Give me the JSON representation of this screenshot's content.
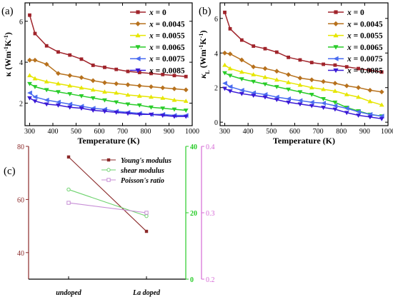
{
  "panel_labels": [
    "(a)",
    "(b)",
    "(c)"
  ],
  "series_names": [
    "x = 0",
    "x = 0.0045",
    "x = 0.0055",
    "x = 0.0065",
    "x = 0.0075",
    "x = 0.0085"
  ],
  "series_colors": [
    "#a0242b",
    "#b7711d",
    "#e6e600",
    "#29cc29",
    "#4a6cf0",
    "#3a1ad6"
  ],
  "chart_data": [
    {
      "type": "line",
      "panel": "(a)",
      "xlabel": "Temperature (K)",
      "ylabel": "κ (Wm⁻¹K⁻¹)",
      "xlim": [
        280,
        1000
      ],
      "xticks": [
        300,
        400,
        500,
        600,
        700,
        800,
        900,
        1000
      ],
      "ylim": [
        0.9,
        6.9
      ],
      "yticks": [
        2,
        4,
        6
      ],
      "grid": false,
      "legend": "top-right",
      "x": [
        300,
        323,
        373,
        423,
        473,
        523,
        573,
        623,
        673,
        723,
        773,
        823,
        873,
        923,
        973
      ],
      "series": [
        {
          "name": "x = 0",
          "values": [
            6.3,
            5.4,
            4.8,
            4.5,
            4.35,
            4.15,
            3.85,
            3.75,
            3.65,
            3.55,
            3.5,
            3.45,
            3.4,
            3.35,
            3.3
          ]
        },
        {
          "name": "x = 0.0045",
          "values": [
            4.1,
            4.1,
            3.9,
            3.45,
            3.35,
            3.25,
            3.1,
            3.0,
            2.95,
            2.9,
            2.85,
            2.8,
            2.75,
            2.7,
            2.65
          ]
        },
        {
          "name": "x = 0.0055",
          "values": [
            3.35,
            3.2,
            3.05,
            2.95,
            2.85,
            2.75,
            2.65,
            2.55,
            2.5,
            2.4,
            2.35,
            2.3,
            2.25,
            2.15,
            2.1
          ]
        },
        {
          "name": "x = 0.0065",
          "values": [
            2.95,
            2.8,
            2.65,
            2.55,
            2.45,
            2.35,
            2.25,
            2.15,
            2.05,
            1.95,
            1.9,
            1.8,
            1.75,
            1.7,
            1.65
          ]
        },
        {
          "name": "x = 0.0075",
          "values": [
            2.5,
            2.3,
            2.15,
            2.05,
            1.95,
            1.85,
            1.75,
            1.7,
            1.6,
            1.55,
            1.5,
            1.45,
            1.45,
            1.4,
            1.4
          ]
        },
        {
          "name": "x = 0.0085",
          "values": [
            2.25,
            2.1,
            1.95,
            1.9,
            1.8,
            1.75,
            1.65,
            1.6,
            1.55,
            1.5,
            1.45,
            1.45,
            1.4,
            1.35,
            1.35
          ]
        }
      ]
    },
    {
      "type": "line",
      "panel": "(b)",
      "xlabel": "Temperature (K)",
      "ylabel": "κL (Wm⁻¹K⁻¹)",
      "xlim": [
        280,
        1000
      ],
      "xticks": [
        300,
        400,
        500,
        600,
        700,
        800,
        900,
        1000
      ],
      "ylim": [
        -0.2,
        6.9
      ],
      "yticks": [
        0,
        2,
        4,
        6
      ],
      "grid": false,
      "legend": "top-right",
      "x": [
        300,
        323,
        373,
        423,
        473,
        523,
        573,
        623,
        673,
        723,
        773,
        823,
        873,
        923,
        973
      ],
      "series": [
        {
          "name": "x = 0",
          "values": [
            6.35,
            5.4,
            4.75,
            4.4,
            4.25,
            4.05,
            3.75,
            3.6,
            3.45,
            3.35,
            3.3,
            3.2,
            3.1,
            3.0,
            2.9
          ]
        },
        {
          "name": "x = 0.0045",
          "values": [
            4.0,
            3.95,
            3.6,
            3.2,
            3.1,
            2.95,
            2.75,
            2.55,
            2.45,
            2.35,
            2.25,
            2.1,
            2.0,
            1.85,
            1.75
          ]
        },
        {
          "name": "x = 0.0055",
          "values": [
            3.3,
            3.1,
            2.9,
            2.75,
            2.6,
            2.45,
            2.3,
            2.15,
            2.0,
            1.9,
            1.8,
            1.6,
            1.45,
            1.2,
            1.0
          ]
        },
        {
          "name": "x = 0.0065",
          "values": [
            2.85,
            2.7,
            2.5,
            2.35,
            2.2,
            2.05,
            1.9,
            1.75,
            1.6,
            1.35,
            1.15,
            0.85,
            0.65,
            0.45,
            0.35
          ]
        },
        {
          "name": "x = 0.0075",
          "values": [
            2.25,
            2.05,
            1.85,
            1.7,
            1.6,
            1.45,
            1.35,
            1.25,
            1.15,
            1.1,
            0.95,
            0.8,
            0.6,
            0.45,
            0.35
          ]
        },
        {
          "name": "x = 0.0085",
          "values": [
            1.95,
            1.8,
            1.65,
            1.55,
            1.45,
            1.3,
            1.15,
            1.05,
            0.95,
            0.85,
            0.75,
            0.55,
            0.4,
            0.3,
            0.2
          ]
        }
      ]
    },
    {
      "type": "line",
      "panel": "(c)",
      "categories": [
        "undoped",
        "La doped"
      ],
      "axes": [
        {
          "side": "left",
          "color": "#8b2a2a",
          "ylim": [
            30,
            80
          ],
          "yticks": [
            40,
            60,
            80
          ]
        },
        {
          "side": "right1",
          "color": "#29cc29",
          "ylim": [
            0,
            40
          ],
          "yticks": [
            0,
            20,
            40
          ]
        },
        {
          "side": "right2",
          "color": "#d66ad6",
          "ylim": [
            0.2,
            0.4
          ],
          "yticks": [
            0.2,
            0.3,
            0.4
          ]
        }
      ],
      "legend": "top-right",
      "series": [
        {
          "name": "Young's modulus",
          "axis": 0,
          "color": "#8b2a2a",
          "marker": "square",
          "values": [
            76,
            48
          ]
        },
        {
          "name": "shear modulus",
          "axis": 1,
          "color": "#6ed36e",
          "marker": "circle",
          "values": [
            27,
            19
          ]
        },
        {
          "name": "Poisson's ratio",
          "axis": 2,
          "color": "#c78ed6",
          "marker": "square",
          "values": [
            0.315,
            0.3
          ]
        }
      ]
    }
  ]
}
